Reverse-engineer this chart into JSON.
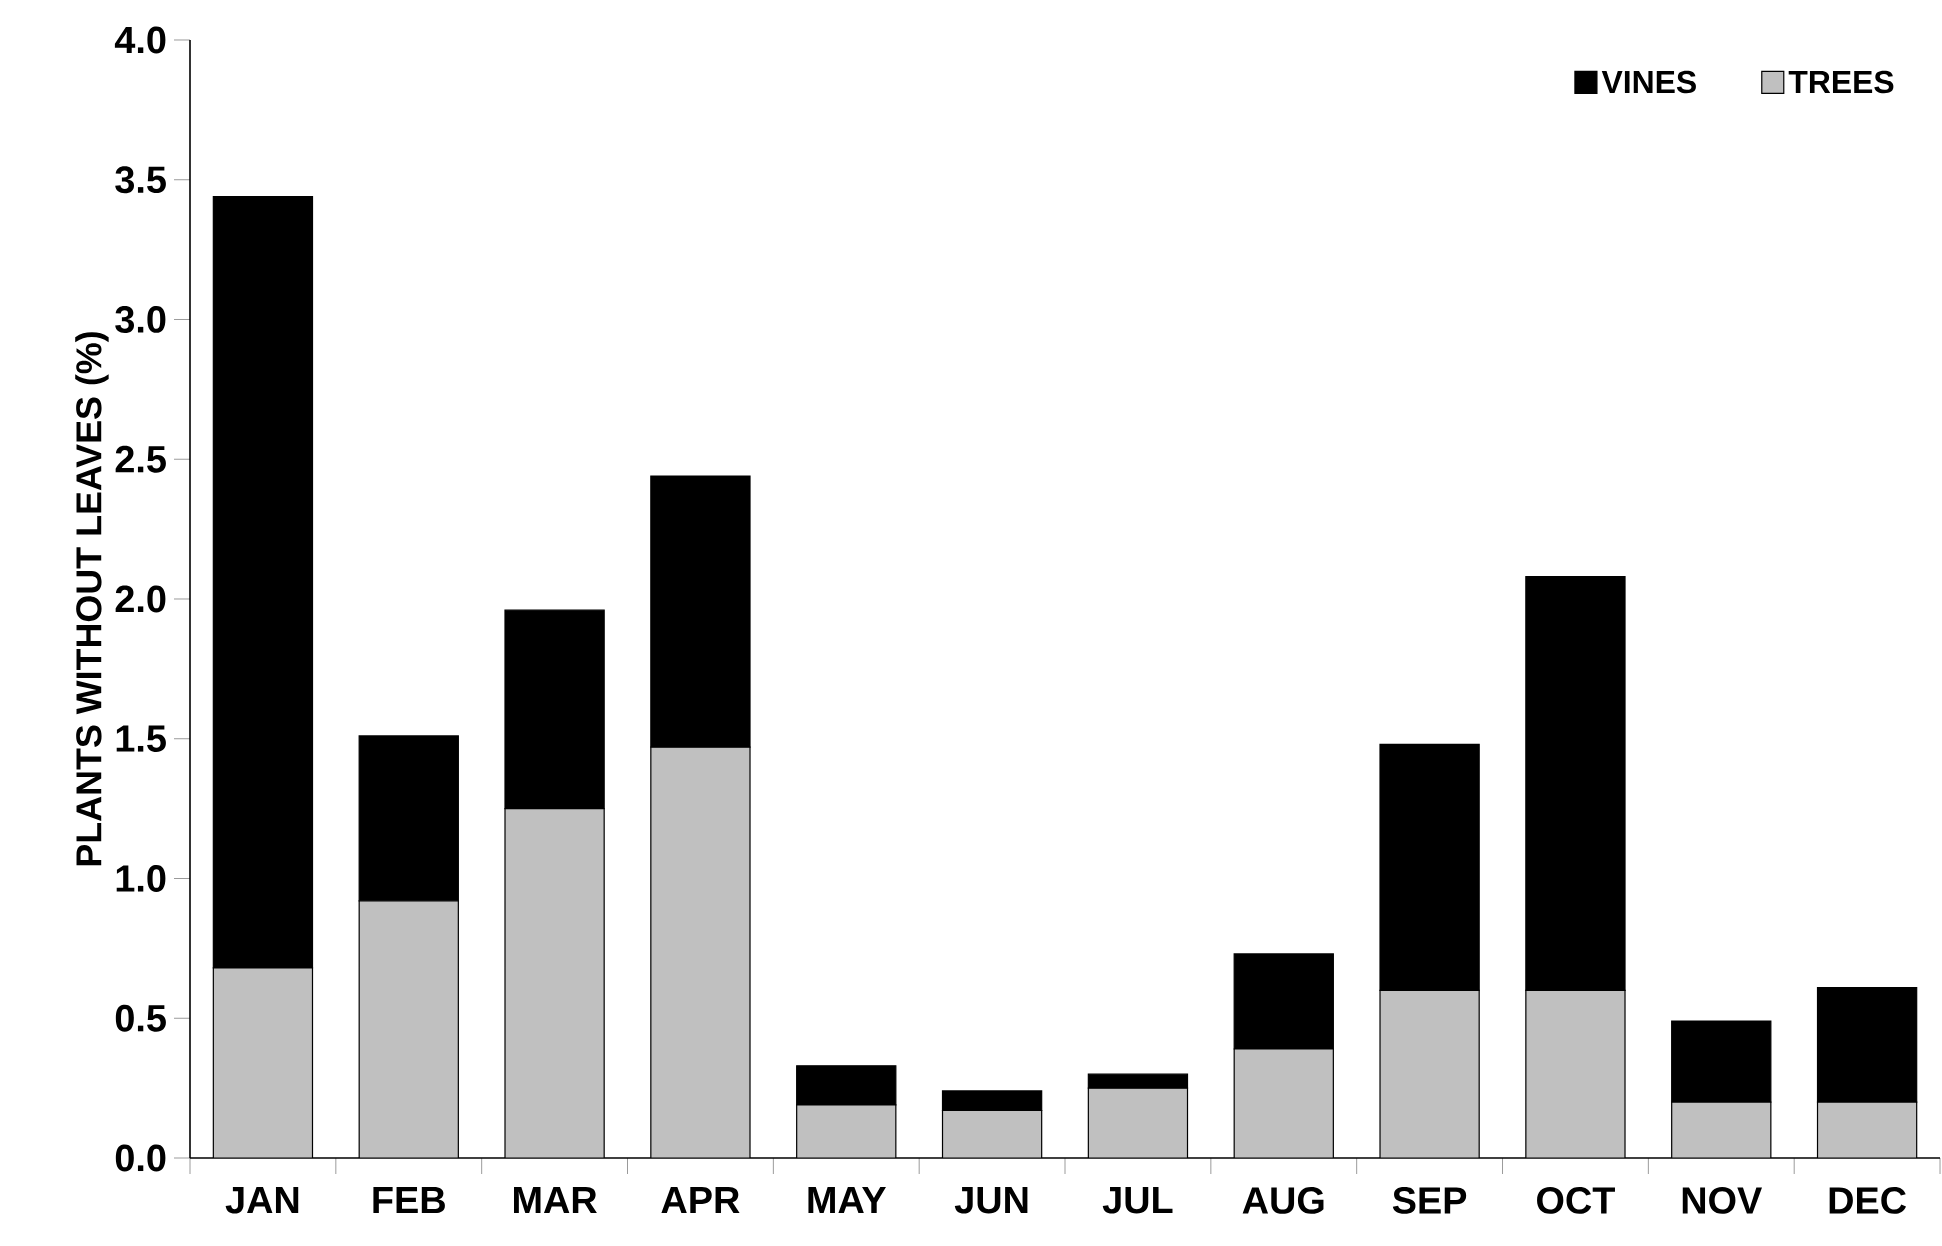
{
  "chart_data": {
    "type": "bar",
    "stacked": true,
    "ylabel": "PLANTS WITHOUT LEAVES (%)",
    "categories": [
      "JAN",
      "FEB",
      "MAR",
      "APR",
      "MAY",
      "JUN",
      "JUL",
      "AUG",
      "SEP",
      "OCT",
      "NOV",
      "DEC"
    ],
    "series": [
      {
        "name": "TREES",
        "color": "#c0c0c0",
        "values": [
          0.68,
          0.92,
          1.25,
          1.47,
          0.19,
          0.17,
          0.25,
          0.39,
          0.6,
          0.6,
          0.2,
          0.2
        ]
      },
      {
        "name": "VINES",
        "color": "#000000",
        "values": [
          2.76,
          0.59,
          0.71,
          0.97,
          0.14,
          0.07,
          0.05,
          0.34,
          0.88,
          1.48,
          0.29,
          0.41
        ]
      }
    ],
    "ylim": [
      0,
      4.0
    ],
    "yticks": [
      {
        "value": 0,
        "label": "0.0"
      },
      {
        "value": 0.5,
        "label": "0.5"
      },
      {
        "value": 1,
        "label": "1.0"
      },
      {
        "value": 1.5,
        "label": "1.5"
      },
      {
        "value": 2,
        "label": "2.0"
      },
      {
        "value": 2.5,
        "label": "2.5"
      },
      {
        "value": 3,
        "label": "3.0"
      },
      {
        "value": 3.5,
        "label": "3.5"
      },
      {
        "value": 4,
        "label": "4.0"
      }
    ],
    "legend": "top right"
  }
}
